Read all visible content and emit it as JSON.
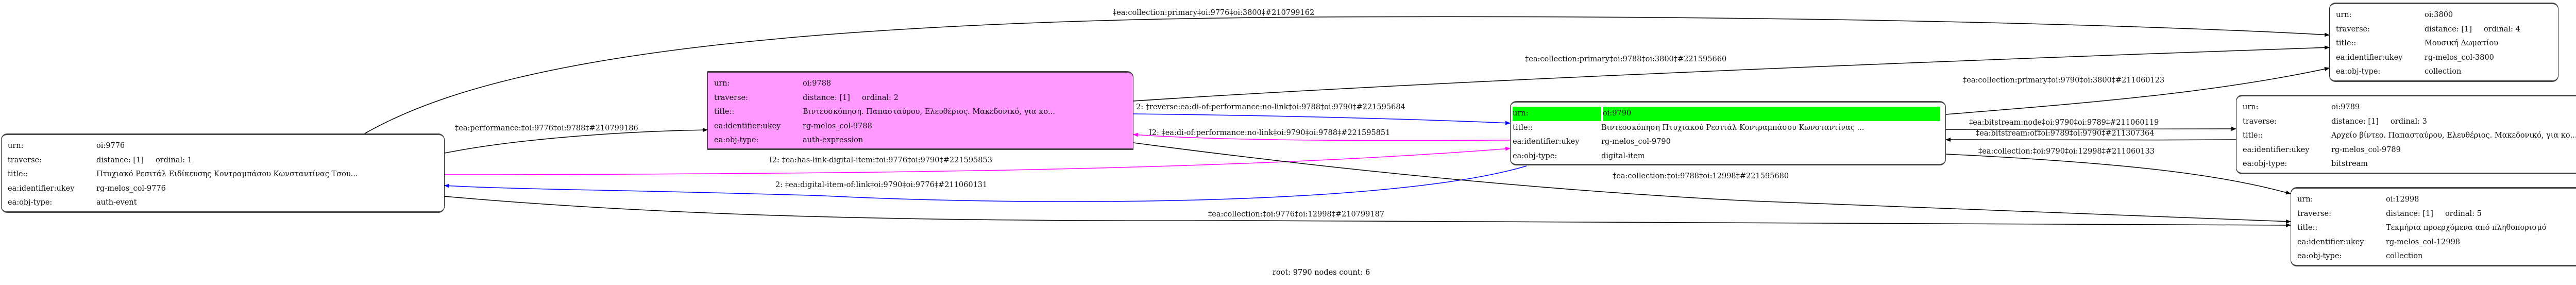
{
  "nodes": {
    "n9776": {
      "urn": "oi:9776",
      "traverse": "distance: [1]     ordinal: 1",
      "title": "Πτυχιακό Ρεσιτάλ Ειδίκευσης Κοντραμπάσου Κωνσταντίνας Τσου...",
      "ukey": "rg-melos_col-9776",
      "obj_type": "auth-event"
    },
    "n9788": {
      "urn": "oi:9788",
      "traverse": "distance: [1]     ordinal: 2",
      "title": "Βιντεοσκόπηση. Παπασταύρου, Ελευθέριος. Μακεδονικό, για κο...",
      "ukey": "rg-melos_col-9788",
      "obj_type": "auth-expression",
      "fill": "#ff99ff"
    },
    "n9790": {
      "urn": "oi:9790",
      "title": "Βιντεοσκόπηση Πτυχιακού Ρεσιτάλ Κοντραμπάσου Κωνσταντίνας ...",
      "ukey": "rg-melos_col-9790",
      "obj_type": "digital-item",
      "highlight": "#00ff00"
    },
    "n3800": {
      "urn": "oi:3800",
      "traverse": "distance: [1]     ordinal: 4",
      "title": "Μουσική Δωματίου",
      "ukey": "rg-melos_col-3800",
      "obj_type": "collection"
    },
    "n9789": {
      "urn": "oi:9789",
      "traverse": "distance: [1]     ordinal: 3",
      "title": "Αρχείο βίντεο. Παπασταύρου, Ελευθέριος. Μακεδονικό, για κο...",
      "ukey": "rg-melos_col-9789",
      "obj_type": "bitstream"
    },
    "n12998": {
      "urn": "oi:12998",
      "traverse": "distance: [1]     ordinal: 5",
      "title": "Τεκμήρια προερχόμενα από πληθοπορισμό",
      "ukey": "rg-melos_col-12998",
      "obj_type": "collection"
    }
  },
  "keys": {
    "urn": "urn:",
    "traverse": "traverse:",
    "title": "title::",
    "ukey": "ea:identifier:ukey",
    "obj_type": "ea:obj-type:"
  },
  "edges": [
    {
      "label": "‡ea:collection:primary‡oi:9776‡oi:3800‡#210799162",
      "color": "#000000"
    },
    {
      "label": "‡ea:collection:primary‡oi:9788‡oi:3800‡#221595660",
      "color": "#000000"
    },
    {
      "label": "‡ea:performance:‡oi:9776‡oi:9788‡#210799186",
      "color": "#000000"
    },
    {
      "label": "2: ‡reverse:ea:di-of:performance:no-link‡oi:9788‡oi:9790‡#221595684",
      "color": "#0000ff"
    },
    {
      "label": "I2: ‡ea:di-of:performance:no-link‡oi:9790‡oi:9788‡#221595851",
      "color": "#ff00ff"
    },
    {
      "label": "I2: ‡ea:has-link-digital-item:‡oi:9776‡oi:9790‡#221595853",
      "color": "#ff00ff"
    },
    {
      "label": "2: ‡ea:digital-item-of:link‡oi:9790‡oi:9776‡#211060131",
      "color": "#0000ff"
    },
    {
      "label": "‡ea:collection:‡oi:9776‡oi:12998‡#210799187",
      "color": "#000000"
    },
    {
      "label": "‡ea:collection:‡oi:9788‡oi:12998‡#221595680",
      "color": "#000000"
    },
    {
      "label": "‡ea:collection:primary‡oi:9790‡oi:3800‡#211060123",
      "color": "#000000"
    },
    {
      "label": "‡ea:bitstream:node‡oi:9790‡oi:9789‡#211060119",
      "color": "#000000"
    },
    {
      "label": "‡ea:bitstream:of‡oi:9789‡oi:9790‡#211307364",
      "color": "#000000"
    },
    {
      "label": "‡ea:collection:‡oi:9790‡oi:12998‡#211060133",
      "color": "#000000"
    }
  ],
  "footer": "root: 9790 nodes count: 6"
}
